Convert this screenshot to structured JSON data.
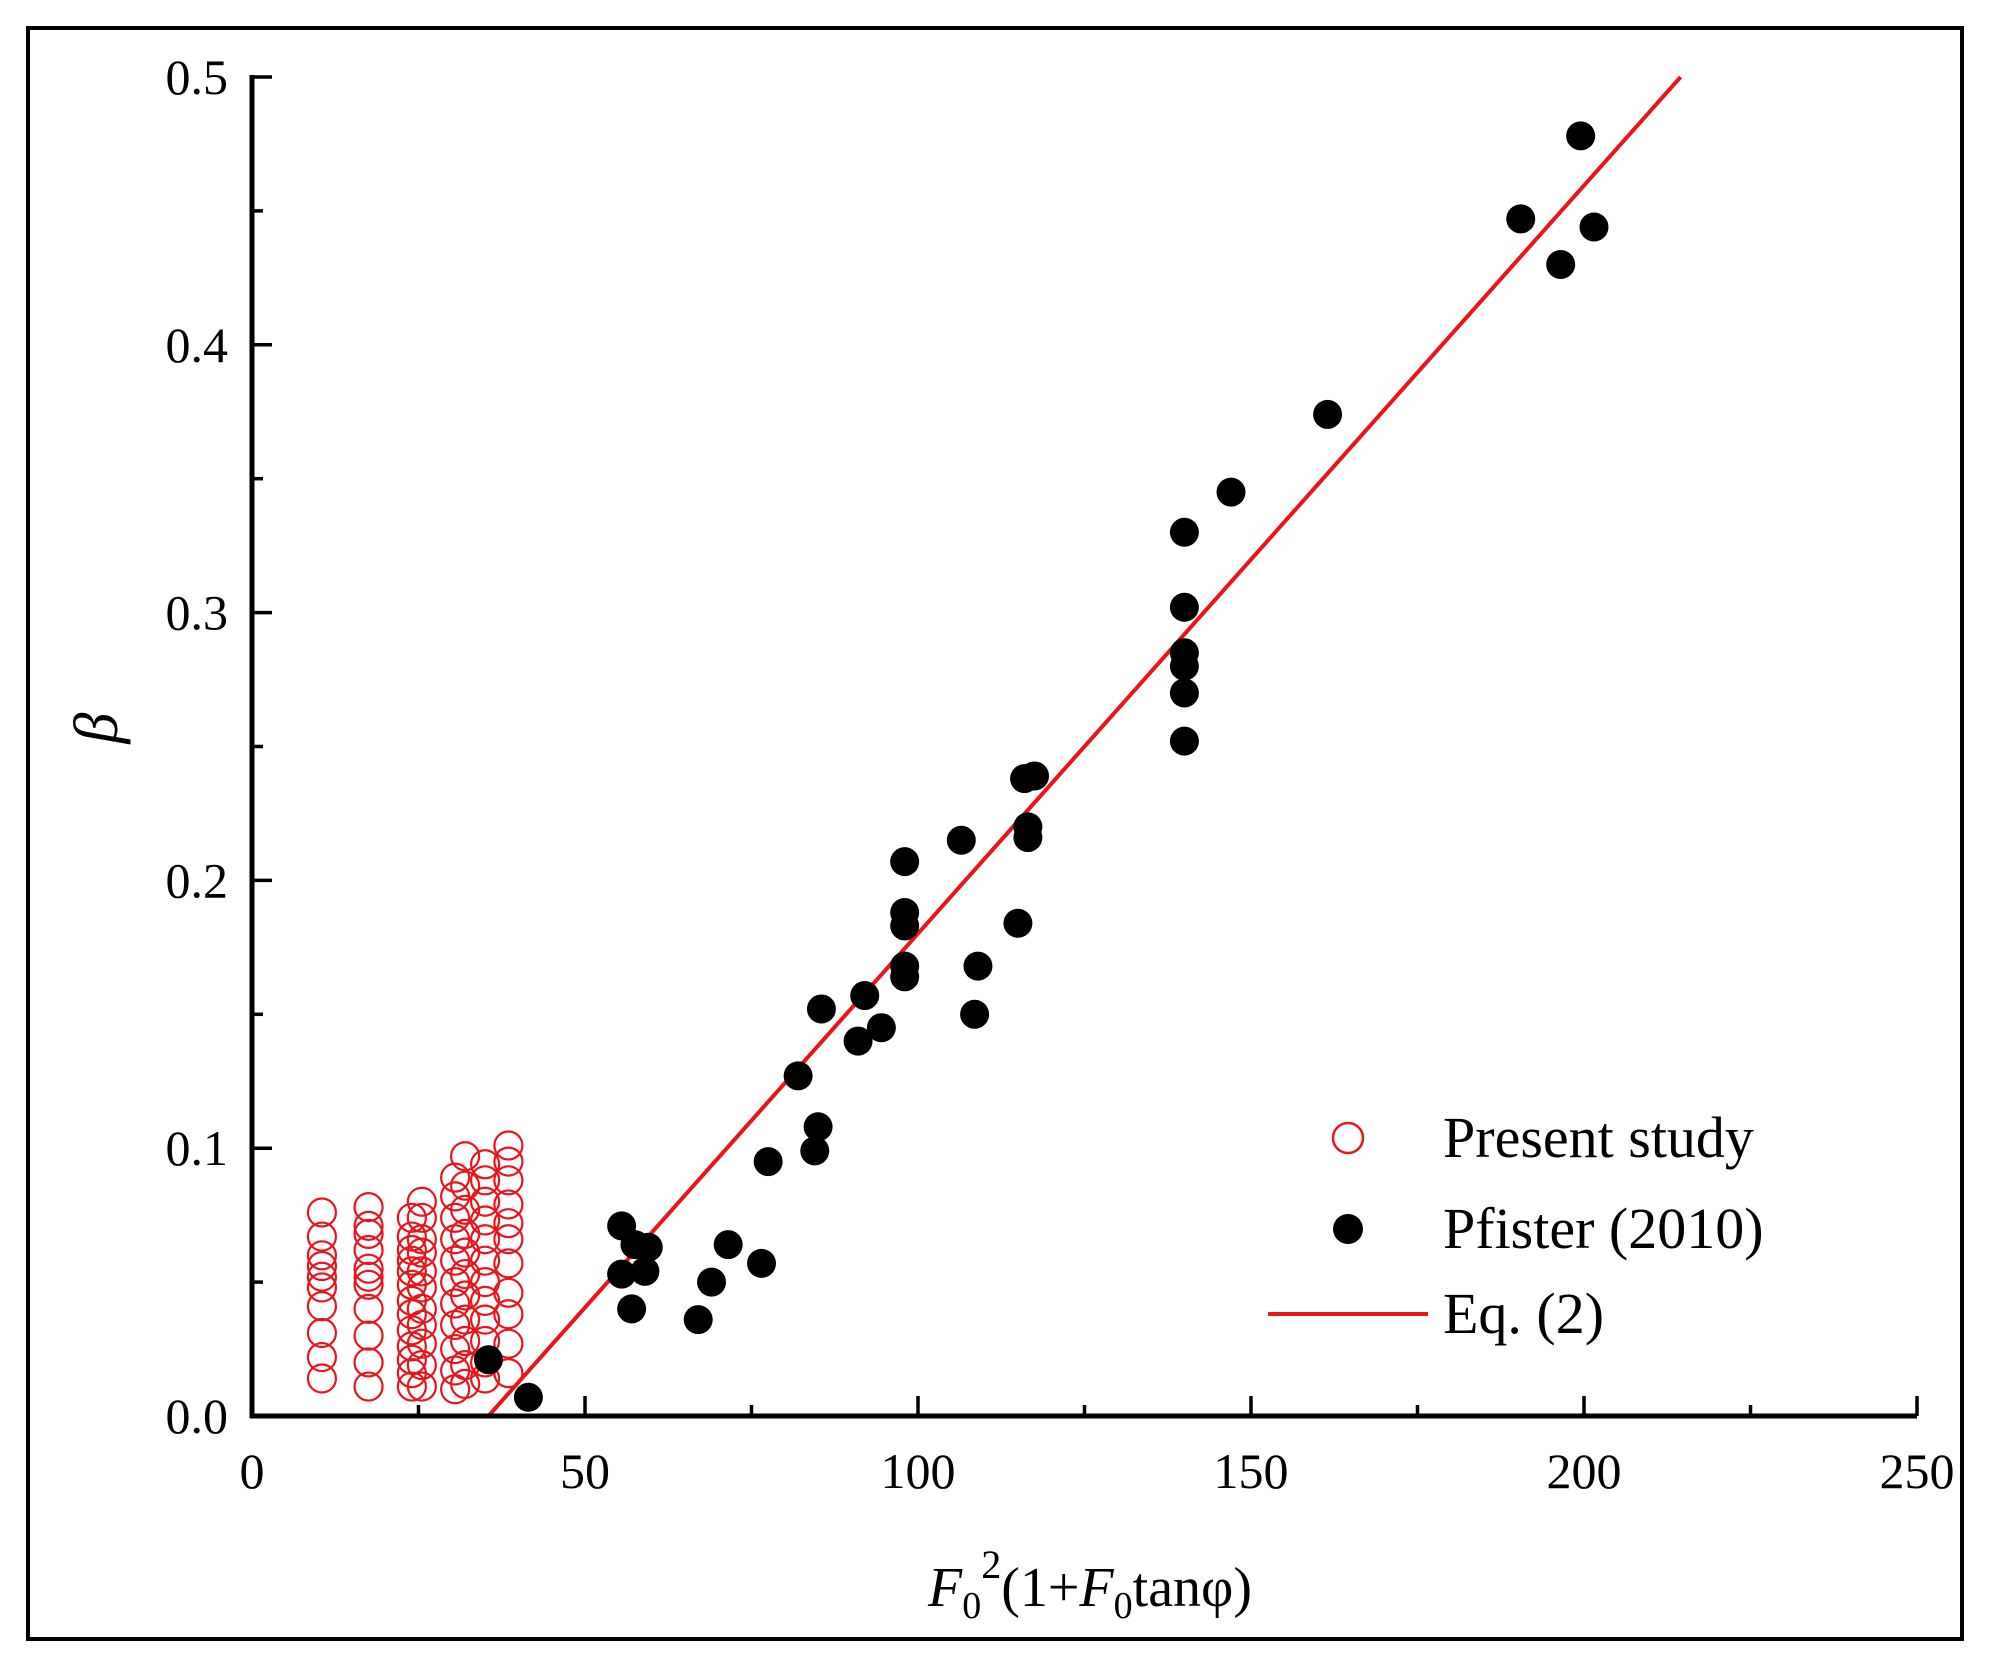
{
  "chart_data": {
    "type": "scatter",
    "xlabel": {
      "base": "F",
      "sub1": "0",
      "sup": "2",
      "mid": "(1+",
      "base2": "F",
      "sub2": "0",
      "tail": "tanφ)"
    },
    "ylabel": "β",
    "xlim": [
      0,
      250
    ],
    "ylim": [
      0,
      0.5
    ],
    "xticks": [
      0,
      50,
      100,
      150,
      200,
      250
    ],
    "xtick_labels": [
      "0",
      "50",
      "100",
      "150",
      "200",
      "250"
    ],
    "yticks": [
      0,
      0.1,
      0.2,
      0.3,
      0.4,
      0.5
    ],
    "ytick_labels": [
      "0.0",
      "0.1",
      "0.2",
      "0.3",
      "0.4",
      "0.5"
    ],
    "legend_position": "bottom-right",
    "series": [
      {
        "name": "Present study",
        "marker": "open-circle",
        "color": "#e8151b",
        "points": [
          [
            10.5,
            0.076
          ],
          [
            10.5,
            0.067
          ],
          [
            10.5,
            0.06
          ],
          [
            10.5,
            0.056
          ],
          [
            10.5,
            0.052
          ],
          [
            10.5,
            0.048
          ],
          [
            10.5,
            0.041
          ],
          [
            10.5,
            0.031
          ],
          [
            10.5,
            0.022
          ],
          [
            10.5,
            0.014
          ],
          [
            17.5,
            0.078
          ],
          [
            17.5,
            0.071
          ],
          [
            17.5,
            0.068
          ],
          [
            17.5,
            0.062
          ],
          [
            17.5,
            0.055
          ],
          [
            17.5,
            0.052
          ],
          [
            17.5,
            0.049
          ],
          [
            17.5,
            0.04
          ],
          [
            17.5,
            0.03
          ],
          [
            17.5,
            0.02
          ],
          [
            17.5,
            0.011
          ],
          [
            24,
            0.074
          ],
          [
            24,
            0.067
          ],
          [
            24,
            0.062
          ],
          [
            24,
            0.058
          ],
          [
            24,
            0.054
          ],
          [
            24,
            0.049
          ],
          [
            24,
            0.043
          ],
          [
            24,
            0.038
          ],
          [
            24,
            0.032
          ],
          [
            24,
            0.026
          ],
          [
            24,
            0.021
          ],
          [
            24,
            0.016
          ],
          [
            24,
            0.011
          ],
          [
            25.5,
            0.08
          ],
          [
            25.5,
            0.074
          ],
          [
            25.5,
            0.066
          ],
          [
            25.5,
            0.061
          ],
          [
            25.5,
            0.054
          ],
          [
            25.5,
            0.048
          ],
          [
            25.5,
            0.04
          ],
          [
            25.5,
            0.034
          ],
          [
            25.5,
            0.027
          ],
          [
            25.5,
            0.019
          ],
          [
            25.5,
            0.011
          ],
          [
            30.5,
            0.089
          ],
          [
            30.5,
            0.082
          ],
          [
            30.5,
            0.074
          ],
          [
            30.5,
            0.066
          ],
          [
            30.5,
            0.058
          ],
          [
            30.5,
            0.05
          ],
          [
            30.5,
            0.042
          ],
          [
            30.5,
            0.034
          ],
          [
            30.5,
            0.025
          ],
          [
            30.5,
            0.017
          ],
          [
            30.5,
            0.01
          ],
          [
            32,
            0.097
          ],
          [
            32,
            0.086
          ],
          [
            32,
            0.077
          ],
          [
            32,
            0.068
          ],
          [
            32,
            0.061
          ],
          [
            32,
            0.053
          ],
          [
            32,
            0.045
          ],
          [
            32,
            0.036
          ],
          [
            32,
            0.028
          ],
          [
            32,
            0.019
          ],
          [
            32,
            0.012
          ],
          [
            35,
            0.094
          ],
          [
            35,
            0.088
          ],
          [
            35,
            0.08
          ],
          [
            35,
            0.073
          ],
          [
            35,
            0.066
          ],
          [
            35,
            0.058
          ],
          [
            35,
            0.05
          ],
          [
            35,
            0.043
          ],
          [
            35,
            0.036
          ],
          [
            35,
            0.028
          ],
          [
            35,
            0.02
          ],
          [
            35,
            0.014
          ],
          [
            38.5,
            0.101
          ],
          [
            38.5,
            0.095
          ],
          [
            38.5,
            0.088
          ],
          [
            38.5,
            0.079
          ],
          [
            38.5,
            0.072
          ],
          [
            38.5,
            0.066
          ],
          [
            38.5,
            0.057
          ],
          [
            38.5,
            0.046
          ],
          [
            38.5,
            0.038
          ],
          [
            38.5,
            0.027
          ],
          [
            38.5,
            0.016
          ]
        ]
      },
      {
        "name": "Pfister (2010)",
        "marker": "filled-circle",
        "color": "#000000",
        "points": [
          [
            35.5,
            0.021
          ],
          [
            41.5,
            0.007
          ],
          [
            55.5,
            0.071
          ],
          [
            55.5,
            0.053
          ],
          [
            57,
            0.04
          ],
          [
            57.5,
            0.064
          ],
          [
            59,
            0.054
          ],
          [
            59.5,
            0.063
          ],
          [
            67,
            0.036
          ],
          [
            69,
            0.05
          ],
          [
            71.5,
            0.064
          ],
          [
            76.5,
            0.057
          ],
          [
            77.5,
            0.095
          ],
          [
            82,
            0.127
          ],
          [
            84.5,
            0.099
          ],
          [
            85,
            0.108
          ],
          [
            85.5,
            0.152
          ],
          [
            91,
            0.14
          ],
          [
            92,
            0.157
          ],
          [
            94.5,
            0.145
          ],
          [
            98,
            0.207
          ],
          [
            98,
            0.188
          ],
          [
            98,
            0.183
          ],
          [
            98,
            0.168
          ],
          [
            98,
            0.164
          ],
          [
            106.5,
            0.215
          ],
          [
            108.5,
            0.15
          ],
          [
            109,
            0.168
          ],
          [
            115,
            0.184
          ],
          [
            116,
            0.238
          ],
          [
            116.5,
            0.216
          ],
          [
            116.5,
            0.22
          ],
          [
            117.5,
            0.239
          ],
          [
            140,
            0.33
          ],
          [
            140,
            0.302
          ],
          [
            140,
            0.285
          ],
          [
            140,
            0.28
          ],
          [
            140,
            0.27
          ],
          [
            140,
            0.252
          ],
          [
            147,
            0.345
          ],
          [
            161.5,
            0.374
          ],
          [
            190.5,
            0.447
          ],
          [
            196.5,
            0.43
          ],
          [
            199.5,
            0.478
          ],
          [
            201.5,
            0.444
          ]
        ]
      },
      {
        "name": "Eq. (2)",
        "marker": "line",
        "color": "#e8151b",
        "points": [
          [
            35.5,
            0.0
          ],
          [
            214.5,
            0.5
          ]
        ]
      }
    ]
  }
}
